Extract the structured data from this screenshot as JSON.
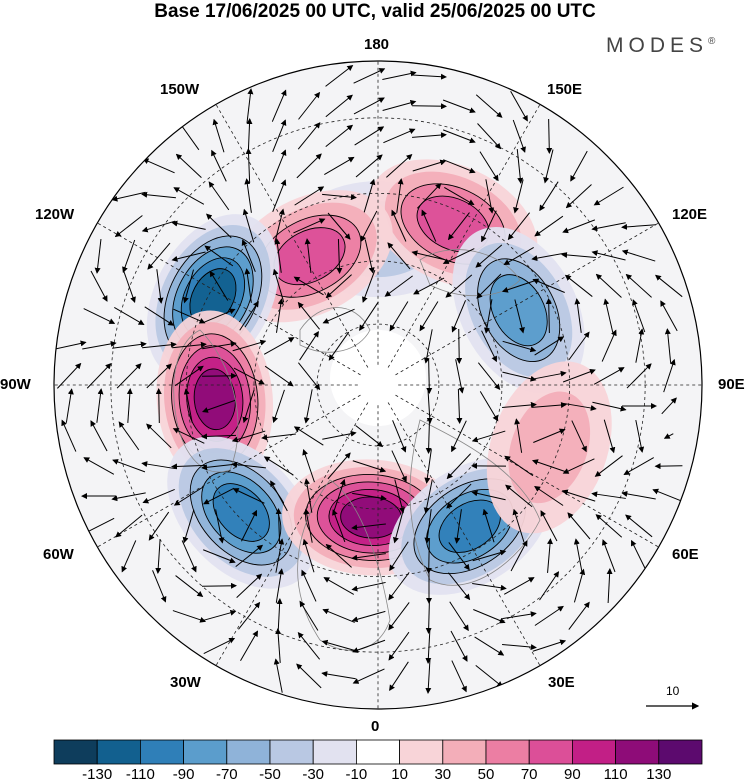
{
  "header": {
    "title": "Base 17/06/2025 00 UTC, valid 25/06/2025 00 UTC",
    "brand": "MODES",
    "brand_mark": "®"
  },
  "map": {
    "projection": "north-polar-stereographic",
    "lon_labels": {
      "top": "180",
      "bottom": "0",
      "left": "90W",
      "right": "90E",
      "upper_left_1": "150W",
      "upper_left_2": "120W",
      "upper_right_1": "150E",
      "upper_right_2": "120E",
      "lower_left_1": "60W",
      "lower_left_2": "30W",
      "lower_right_1": "60E",
      "lower_right_2": "30E"
    },
    "reference_vector_label": "10",
    "anomaly_centers": [
      {
        "lon": -180,
        "lat": 55,
        "sign": "neg",
        "level": 30
      },
      {
        "lon": 155,
        "lat": 48,
        "sign": "pos",
        "level": 70
      },
      {
        "lon": 118,
        "lat": 52,
        "sign": "neg",
        "level": 70
      },
      {
        "lon": -152,
        "lat": 55,
        "sign": "pos",
        "level": 70
      },
      {
        "lon": -118,
        "lat": 46,
        "sign": "neg",
        "level": 110
      },
      {
        "lon": -85,
        "lat": 51,
        "sign": "pos",
        "level": 110
      },
      {
        "lon": -47,
        "lat": 46,
        "sign": "neg",
        "level": 90
      },
      {
        "lon": -3,
        "lat": 58,
        "sign": "pos",
        "level": 110
      },
      {
        "lon": 33,
        "lat": 50,
        "sign": "neg",
        "level": 90
      },
      {
        "lon": 70,
        "lat": 47,
        "sign": "pos",
        "level": 30
      }
    ]
  },
  "colorbar": {
    "labels": [
      "-130",
      "-110",
      "-90",
      "-70",
      "-50",
      "-30",
      "-10",
      "10",
      "30",
      "50",
      "70",
      "90",
      "110",
      "130"
    ],
    "colors": [
      "#0e3d5c",
      "#12608f",
      "#2f7fb8",
      "#5b9dcc",
      "#8fb3d9",
      "#b9c8e3",
      "#e2e2f0",
      "#ffffff",
      "#f8d4d8",
      "#f3aeb9",
      "#ec7ea3",
      "#dc4f98",
      "#c21f86",
      "#8e0c78",
      "#5c0a6e"
    ]
  }
}
